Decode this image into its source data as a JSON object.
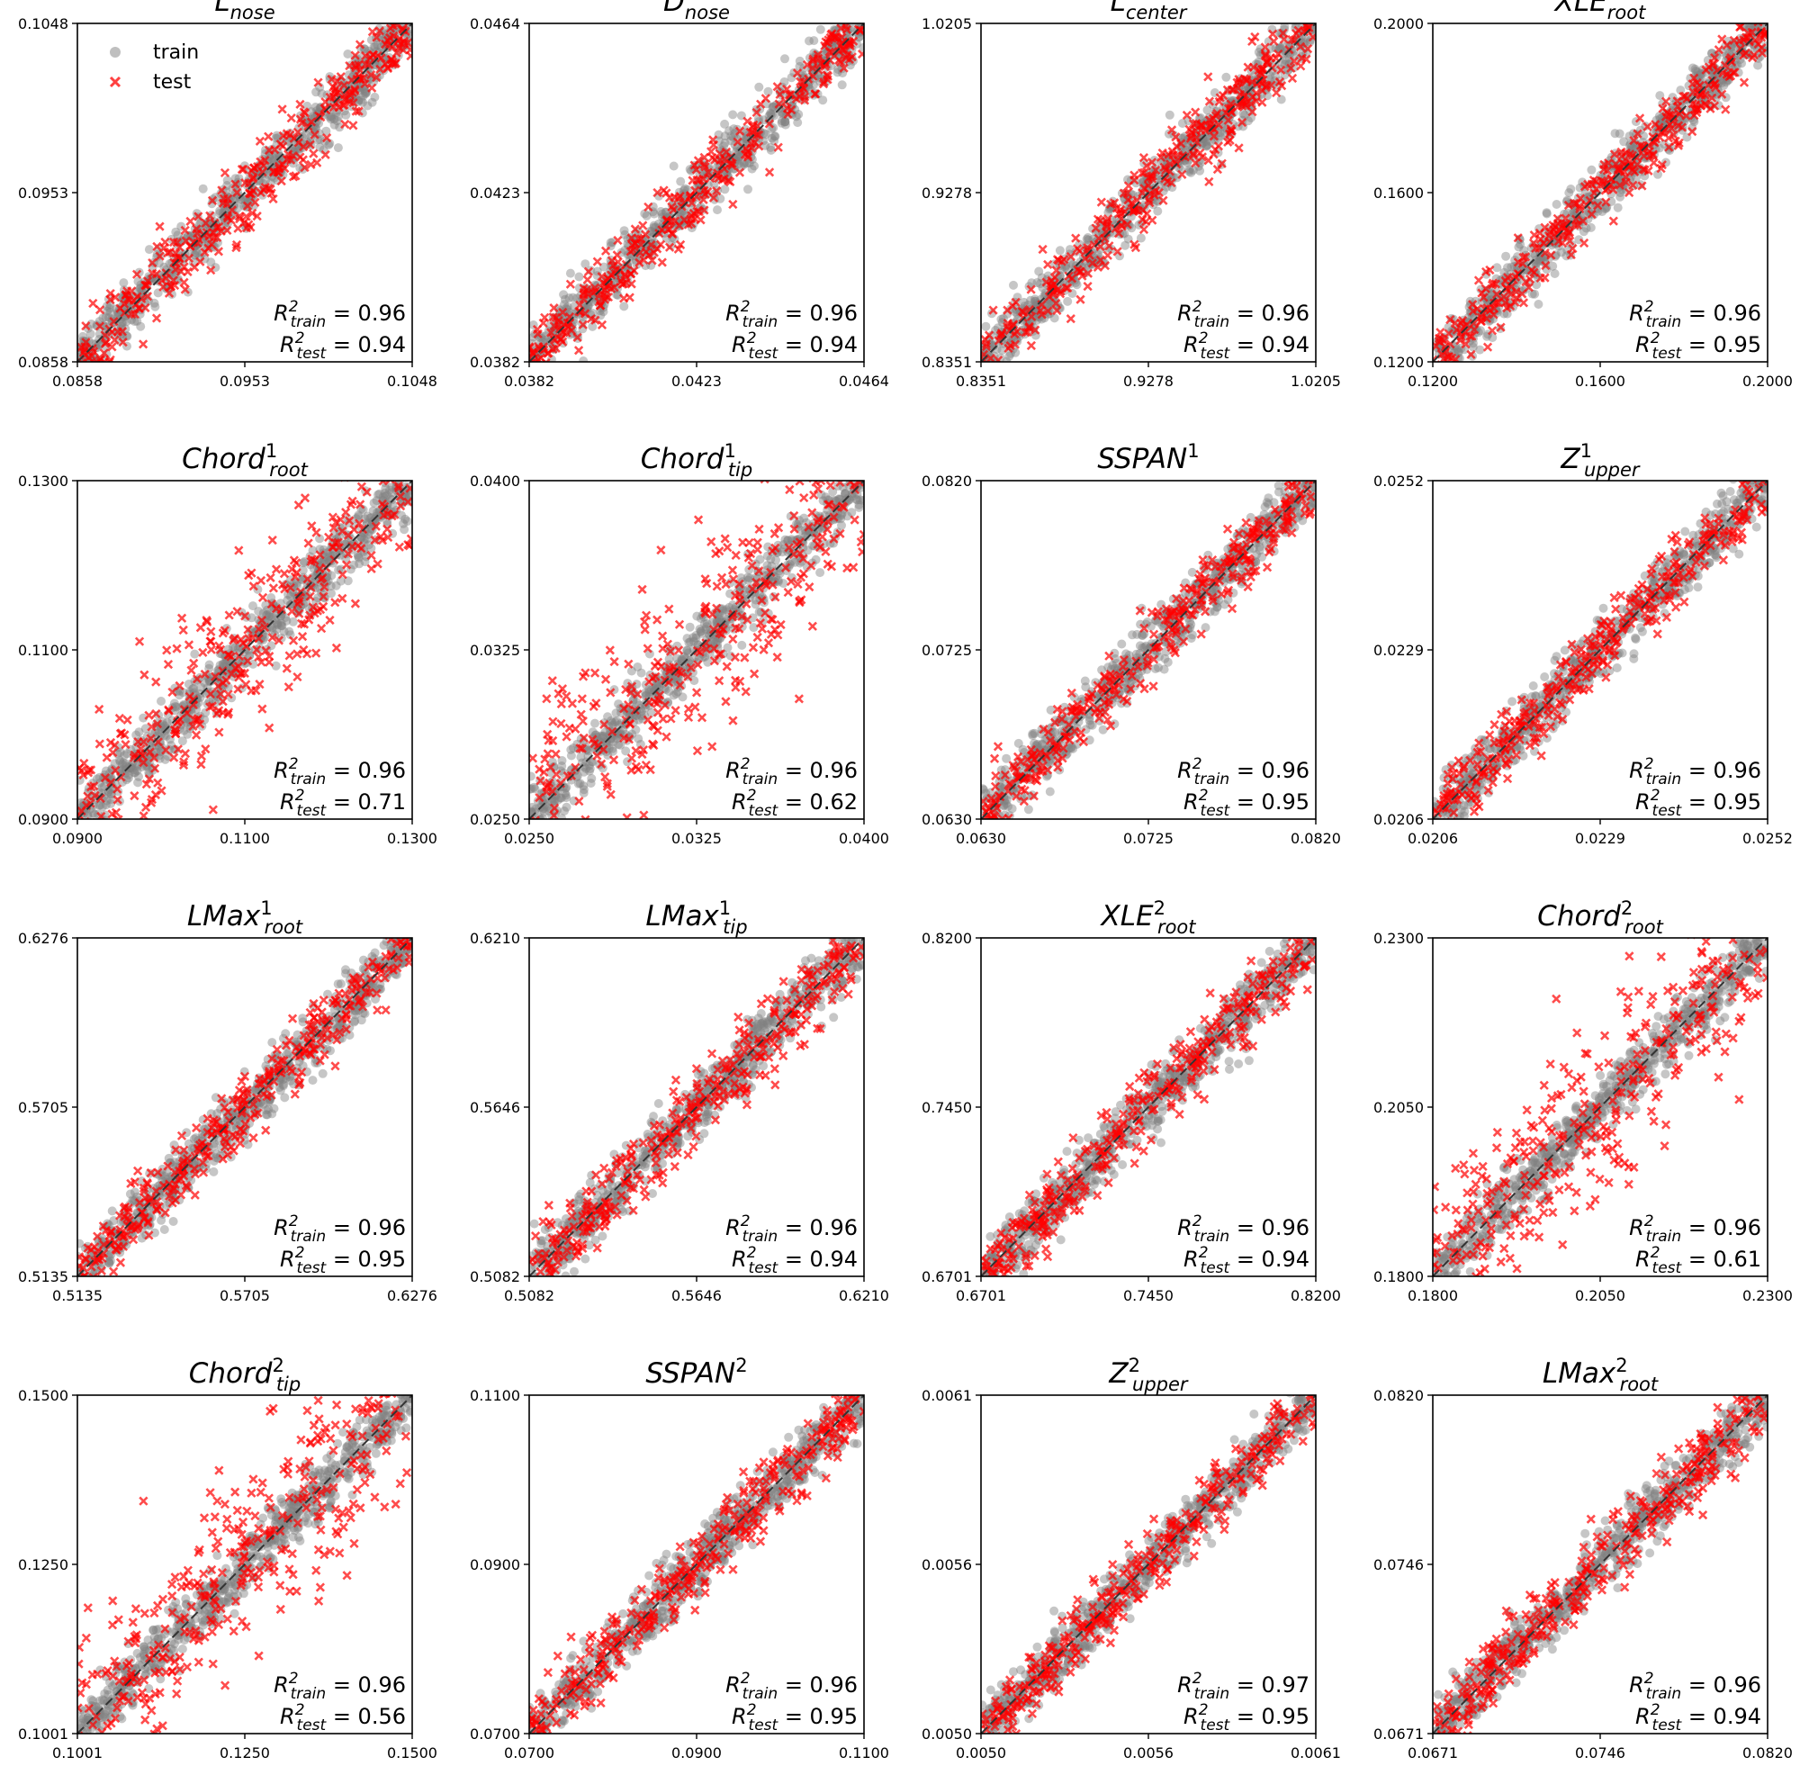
{
  "legend": {
    "train_label": "train",
    "test_label": "test"
  },
  "colors": {
    "train": "#808080",
    "test": "#ff0000",
    "diagonal": "#333333"
  },
  "chart_data": [
    {
      "type": "scatter",
      "title_main": "L",
      "title_sub": "nose",
      "title_sup": "",
      "xlim": [
        0.0858,
        0.1048
      ],
      "ylim": [
        0.0858,
        0.1048
      ],
      "ticks": [
        "0.0858",
        "0.0953",
        "0.1048"
      ],
      "series": [
        {
          "name": "train",
          "r2": "0.96",
          "spread": 0.045
        },
        {
          "name": "test",
          "r2": "0.94",
          "spread": 0.055
        }
      ]
    },
    {
      "type": "scatter",
      "title_main": "D",
      "title_sub": "nose",
      "title_sup": "",
      "xlim": [
        0.0382,
        0.0464
      ],
      "ylim": [
        0.0382,
        0.0464
      ],
      "ticks": [
        "0.0382",
        "0.0423",
        "0.0464"
      ],
      "series": [
        {
          "name": "train",
          "r2": "0.96",
          "spread": 0.045
        },
        {
          "name": "test",
          "r2": "0.94",
          "spread": 0.055
        }
      ]
    },
    {
      "type": "scatter",
      "title_main": "L",
      "title_sub": "center",
      "title_sup": "",
      "xlim": [
        0.8351,
        1.0205
      ],
      "ylim": [
        0.8351,
        1.0205
      ],
      "ticks": [
        "0.8351",
        "0.9278",
        "1.0205"
      ],
      "series": [
        {
          "name": "train",
          "r2": "0.96",
          "spread": 0.045
        },
        {
          "name": "test",
          "r2": "0.94",
          "spread": 0.055
        }
      ]
    },
    {
      "type": "scatter",
      "title_main": "XLE",
      "title_sub": "root",
      "title_sup": "",
      "xlim": [
        0.12,
        0.2
      ],
      "ylim": [
        0.12,
        0.2
      ],
      "ticks": [
        "0.1200",
        "0.1600",
        "0.2000"
      ],
      "series": [
        {
          "name": "train",
          "r2": "0.96",
          "spread": 0.045
        },
        {
          "name": "test",
          "r2": "0.95",
          "spread": 0.05
        }
      ]
    },
    {
      "type": "scatter",
      "title_main": "Chord",
      "title_sub": "root",
      "title_sup": "1",
      "xlim": [
        0.09,
        0.13
      ],
      "ylim": [
        0.09,
        0.13
      ],
      "ticks": [
        "0.0900",
        "0.1100",
        "0.1300"
      ],
      "series": [
        {
          "name": "train",
          "r2": "0.96",
          "spread": 0.045
        },
        {
          "name": "test",
          "r2": "0.71",
          "spread": 0.12
        }
      ]
    },
    {
      "type": "scatter",
      "title_main": "Chord",
      "title_sub": "tip",
      "title_sup": "1",
      "xlim": [
        0.025,
        0.04
      ],
      "ylim": [
        0.025,
        0.04
      ],
      "ticks": [
        "0.0250",
        "0.0325",
        "0.0400"
      ],
      "series": [
        {
          "name": "train",
          "r2": "0.96",
          "spread": 0.045
        },
        {
          "name": "test",
          "r2": "0.62",
          "spread": 0.14
        }
      ]
    },
    {
      "type": "scatter",
      "title_main": "SSPAN",
      "title_sub": "",
      "title_sup": "1",
      "xlim": [
        0.063,
        0.082
      ],
      "ylim": [
        0.063,
        0.082
      ],
      "ticks": [
        "0.0630",
        "0.0725",
        "0.0820"
      ],
      "series": [
        {
          "name": "train",
          "r2": "0.96",
          "spread": 0.045
        },
        {
          "name": "test",
          "r2": "0.95",
          "spread": 0.05
        }
      ]
    },
    {
      "type": "scatter",
      "title_main": "Z",
      "title_sub": "upper",
      "title_sup": "1",
      "xlim": [
        0.0206,
        0.0252
      ],
      "ylim": [
        0.0206,
        0.0252
      ],
      "ticks": [
        "0.0206",
        "0.0229",
        "0.0252"
      ],
      "series": [
        {
          "name": "train",
          "r2": "0.96",
          "spread": 0.045
        },
        {
          "name": "test",
          "r2": "0.95",
          "spread": 0.05
        }
      ]
    },
    {
      "type": "scatter",
      "title_main": "LMax",
      "title_sub": "root",
      "title_sup": "1",
      "xlim": [
        0.5135,
        0.6276
      ],
      "ylim": [
        0.5135,
        0.6276
      ],
      "ticks": [
        "0.5135",
        "0.5705",
        "0.6276"
      ],
      "series": [
        {
          "name": "train",
          "r2": "0.96",
          "spread": 0.045
        },
        {
          "name": "test",
          "r2": "0.95",
          "spread": 0.05
        }
      ]
    },
    {
      "type": "scatter",
      "title_main": "LMax",
      "title_sub": "tip",
      "title_sup": "1",
      "xlim": [
        0.5082,
        0.621
      ],
      "ylim": [
        0.5082,
        0.621
      ],
      "ticks": [
        "0.5082",
        "0.5646",
        "0.6210"
      ],
      "series": [
        {
          "name": "train",
          "r2": "0.96",
          "spread": 0.045
        },
        {
          "name": "test",
          "r2": "0.94",
          "spread": 0.055
        }
      ]
    },
    {
      "type": "scatter",
      "title_main": "XLE",
      "title_sub": "root",
      "title_sup": "2",
      "xlim": [
        0.6701,
        0.82
      ],
      "ylim": [
        0.6701,
        0.82
      ],
      "ticks": [
        "0.6701",
        "0.7450",
        "0.8200"
      ],
      "series": [
        {
          "name": "train",
          "r2": "0.96",
          "spread": 0.045
        },
        {
          "name": "test",
          "r2": "0.94",
          "spread": 0.055
        }
      ]
    },
    {
      "type": "scatter",
      "title_main": "Chord",
      "title_sub": "root",
      "title_sup": "2",
      "xlim": [
        0.18,
        0.23
      ],
      "ylim": [
        0.18,
        0.23
      ],
      "ticks": [
        "0.1800",
        "0.2050",
        "0.2300"
      ],
      "series": [
        {
          "name": "train",
          "r2": "0.96",
          "spread": 0.045
        },
        {
          "name": "test",
          "r2": "0.61",
          "spread": 0.14
        }
      ]
    },
    {
      "type": "scatter",
      "title_main": "Chord",
      "title_sub": "tip",
      "title_sup": "2",
      "xlim": [
        0.1001,
        0.15
      ],
      "ylim": [
        0.1001,
        0.15
      ],
      "ticks": [
        "0.1001",
        "0.1250",
        "0.1500"
      ],
      "series": [
        {
          "name": "train",
          "r2": "0.96",
          "spread": 0.045
        },
        {
          "name": "test",
          "r2": "0.56",
          "spread": 0.15
        }
      ]
    },
    {
      "type": "scatter",
      "title_main": "SSPAN",
      "title_sub": "",
      "title_sup": "2",
      "xlim": [
        0.07,
        0.11
      ],
      "ylim": [
        0.07,
        0.11
      ],
      "ticks": [
        "0.0700",
        "0.0900",
        "0.1100"
      ],
      "series": [
        {
          "name": "train",
          "r2": "0.96",
          "spread": 0.045
        },
        {
          "name": "test",
          "r2": "0.95",
          "spread": 0.05
        }
      ]
    },
    {
      "type": "scatter",
      "title_main": "Z",
      "title_sub": "upper",
      "title_sup": "2",
      "xlim": [
        0.005,
        0.0061
      ],
      "ylim": [
        0.005,
        0.0061
      ],
      "ticks": [
        "0.0050",
        "0.0056",
        "0.0061"
      ],
      "series": [
        {
          "name": "train",
          "r2": "0.97",
          "spread": 0.04
        },
        {
          "name": "test",
          "r2": "0.95",
          "spread": 0.05
        }
      ]
    },
    {
      "type": "scatter",
      "title_main": "LMax",
      "title_sub": "root",
      "title_sup": "2",
      "xlim": [
        0.0671,
        0.082
      ],
      "ylim": [
        0.0671,
        0.082
      ],
      "ticks": [
        "0.0671",
        "0.0746",
        "0.0820"
      ],
      "series": [
        {
          "name": "train",
          "r2": "0.96",
          "spread": 0.045
        },
        {
          "name": "test",
          "r2": "0.94",
          "spread": 0.055
        }
      ]
    }
  ]
}
